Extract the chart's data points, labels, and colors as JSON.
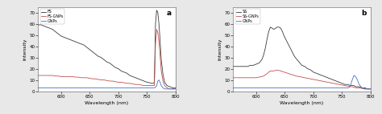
{
  "panel_a": {
    "label": "a",
    "xlabel": "Wavelength (nm)",
    "ylabel": "Intensity",
    "xlim": [
      560,
      800
    ],
    "ylim": [
      0,
      75
    ],
    "yticks": [
      0,
      10,
      20,
      30,
      40,
      50,
      60,
      70
    ],
    "xticks": [
      600,
      650,
      700,
      750,
      800
    ],
    "legend": [
      "FS",
      "FS-GNPs",
      "GNPs"
    ],
    "line_colors": [
      "#3a3a3a",
      "#c0504d",
      "#4472c4"
    ],
    "lines": {
      "FS": {
        "x": [
          560,
          565,
          570,
          575,
          580,
          585,
          590,
          595,
          600,
          605,
          610,
          615,
          620,
          625,
          630,
          635,
          640,
          645,
          650,
          655,
          660,
          665,
          670,
          675,
          680,
          685,
          690,
          695,
          700,
          705,
          710,
          715,
          720,
          725,
          730,
          735,
          740,
          745,
          750,
          755,
          758,
          761,
          763,
          765,
          767,
          769,
          771,
          773,
          775,
          778,
          781,
          785,
          790,
          795,
          800
        ],
        "y": [
          59,
          59,
          58,
          57,
          56,
          55,
          53,
          51,
          49,
          48,
          47,
          46,
          45,
          44,
          43,
          42,
          41,
          39,
          37,
          35,
          33,
          31,
          30,
          28,
          26,
          25,
          23,
          21,
          20,
          18,
          17,
          16,
          14,
          13,
          12,
          11,
          10,
          9,
          8,
          7.5,
          7,
          7,
          8,
          60,
          72,
          70,
          60,
          45,
          28,
          15,
          8,
          5,
          4,
          3,
          3
        ]
      },
      "FS-GNPs": {
        "x": [
          560,
          565,
          570,
          575,
          580,
          585,
          590,
          595,
          600,
          605,
          610,
          615,
          620,
          625,
          630,
          635,
          640,
          645,
          650,
          655,
          660,
          665,
          670,
          675,
          680,
          685,
          690,
          695,
          700,
          705,
          710,
          715,
          720,
          725,
          730,
          735,
          740,
          745,
          750,
          755,
          758,
          761,
          763,
          765,
          767,
          769,
          771,
          773,
          775,
          778,
          781,
          785,
          790,
          795,
          800
        ],
        "y": [
          14,
          14,
          14,
          14,
          14,
          14,
          13.5,
          13.5,
          13,
          13,
          13,
          13,
          13,
          12.5,
          12.5,
          12,
          12,
          12,
          11.5,
          11,
          11,
          10.5,
          10,
          10,
          9.5,
          9,
          9,
          8.5,
          8,
          8,
          7.5,
          7,
          7,
          6.5,
          6,
          6,
          5.5,
          5,
          5,
          5,
          5,
          5,
          5,
          42,
          55,
          52,
          44,
          32,
          18,
          9,
          5,
          3,
          2,
          2,
          2
        ]
      },
      "GNPs": {
        "x": [
          560,
          570,
          580,
          590,
          600,
          610,
          620,
          630,
          640,
          650,
          660,
          670,
          680,
          690,
          700,
          710,
          720,
          730,
          740,
          750,
          758,
          761,
          763,
          765,
          767,
          769,
          771,
          773,
          775,
          778,
          781,
          790,
          800
        ],
        "y": [
          3,
          3,
          3,
          3,
          3,
          3,
          3,
          3,
          3,
          3,
          3,
          3,
          3,
          3,
          3,
          3,
          3,
          3,
          3,
          3,
          3,
          3,
          3,
          3.5,
          5,
          9,
          10,
          8,
          5,
          3,
          2,
          2,
          2
        ]
      }
    }
  },
  "panel_b": {
    "label": "b",
    "xlabel": "Wavelength (nm)",
    "ylabel": "Intensity",
    "xlim": [
      560,
      800
    ],
    "ylim": [
      0,
      75
    ],
    "yticks": [
      0,
      10,
      20,
      30,
      40,
      50,
      60,
      70
    ],
    "xticks": [
      600,
      650,
      700,
      750,
      800
    ],
    "legend": [
      "SS",
      "SS-GNPs",
      "GNPs"
    ],
    "line_colors": [
      "#3a3a3a",
      "#c0504d",
      "#4472c4"
    ],
    "lines": {
      "SS": {
        "x": [
          560,
          565,
          570,
          575,
          580,
          585,
          590,
          595,
          600,
          605,
          610,
          613,
          616,
          619,
          622,
          625,
          628,
          631,
          634,
          637,
          640,
          643,
          646,
          649,
          652,
          655,
          658,
          661,
          664,
          667,
          670,
          675,
          680,
          685,
          690,
          695,
          700,
          705,
          710,
          715,
          720,
          725,
          730,
          735,
          740,
          745,
          750,
          755,
          760,
          765,
          768,
          771,
          774,
          777,
          780,
          785,
          790,
          795,
          800
        ],
        "y": [
          22,
          22,
          22,
          22,
          22,
          22,
          23,
          23,
          24,
          25,
          28,
          32,
          38,
          46,
          53,
          57,
          56,
          55,
          56,
          57,
          57,
          56,
          53,
          49,
          46,
          43,
          40,
          37,
          34,
          31,
          29,
          26,
          23,
          22,
          20,
          19,
          17,
          16,
          15,
          14,
          13,
          12,
          11,
          10,
          9,
          8,
          7,
          6,
          6,
          5,
          5,
          5,
          4,
          4,
          4,
          3,
          3,
          2,
          2
        ]
      },
      "SS-GNPs": {
        "x": [
          560,
          565,
          570,
          575,
          580,
          585,
          590,
          595,
          600,
          605,
          610,
          613,
          616,
          619,
          622,
          625,
          628,
          631,
          634,
          637,
          640,
          643,
          646,
          649,
          652,
          655,
          658,
          661,
          664,
          667,
          670,
          675,
          680,
          685,
          690,
          695,
          700,
          705,
          710,
          715,
          720,
          725,
          730,
          735,
          740,
          745,
          750,
          755,
          760,
          765,
          768,
          771,
          774,
          777,
          780,
          785,
          790,
          795,
          800
        ],
        "y": [
          12,
          12,
          12,
          12,
          12,
          12,
          12,
          12,
          12,
          12.5,
          13,
          13.5,
          14.5,
          15.5,
          17,
          18,
          18,
          18,
          18.5,
          18.5,
          18.5,
          18,
          17.5,
          17,
          16.5,
          16,
          15.5,
          15,
          14.5,
          14,
          13.5,
          13,
          12.5,
          12,
          11.5,
          11,
          10.5,
          10,
          9.5,
          9,
          8.5,
          8,
          7.5,
          7,
          6.5,
          6,
          5.5,
          5,
          4.5,
          4,
          4,
          3.5,
          3,
          3,
          3,
          2.5,
          2,
          2,
          2
        ]
      },
      "GNPs": {
        "x": [
          560,
          570,
          580,
          590,
          600,
          610,
          620,
          630,
          640,
          650,
          660,
          670,
          680,
          690,
          700,
          710,
          720,
          730,
          740,
          750,
          758,
          761,
          763,
          765,
          768,
          771,
          774,
          777,
          780,
          785,
          790,
          800
        ],
        "y": [
          3,
          3,
          3,
          3,
          3,
          3,
          3,
          3,
          3,
          3,
          3,
          3,
          3,
          3,
          3,
          3,
          3,
          3,
          3,
          3,
          3,
          3,
          3.5,
          5,
          10,
          14,
          13,
          10,
          6,
          3,
          2,
          2
        ]
      }
    }
  },
  "figure_bg": "#e8e8e8",
  "axes_bg": "#ffffff",
  "border_color": "#cccccc"
}
